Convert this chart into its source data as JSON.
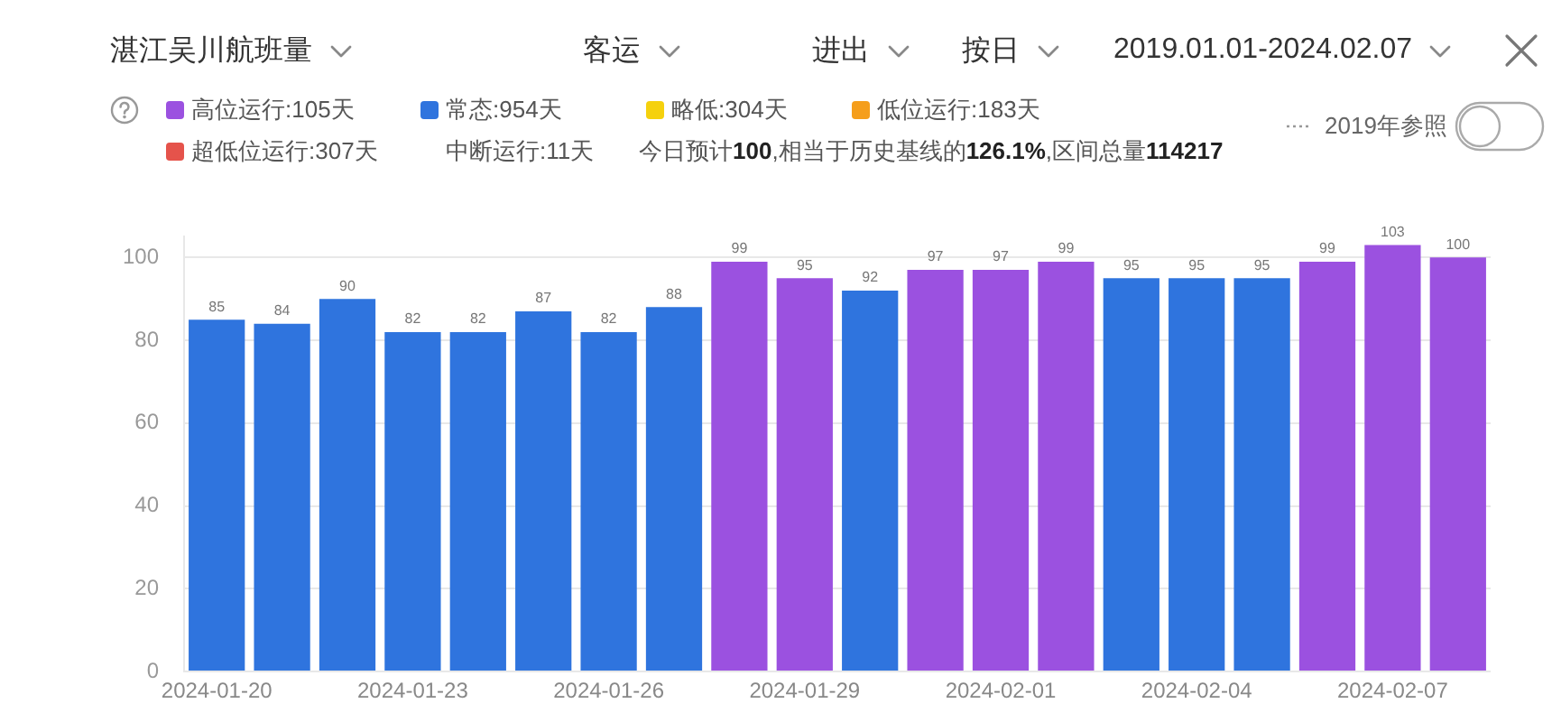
{
  "chart_data": {
    "type": "bar",
    "title": "湛江吴川航班量",
    "categories": [
      "2024-01-20",
      null,
      null,
      "2024-01-23",
      null,
      null,
      "2024-01-26",
      null,
      null,
      "2024-01-29",
      null,
      null,
      "2024-02-01",
      null,
      null,
      "2024-02-04",
      null,
      null,
      "2024-02-07",
      null
    ],
    "series": [
      {
        "name": "高位运行:105天",
        "color": "#9b51e0",
        "values": [
          null,
          null,
          null,
          null,
          null,
          null,
          null,
          null,
          99,
          95,
          null,
          97,
          97,
          99,
          null,
          null,
          null,
          99,
          103,
          100
        ]
      },
      {
        "name": "常态:954天",
        "color": "#2f74de",
        "values": [
          85,
          84,
          90,
          82,
          82,
          87,
          82,
          88,
          null,
          null,
          92,
          null,
          null,
          null,
          95,
          95,
          95,
          null,
          null,
          null
        ]
      },
      {
        "name": "略低:304天",
        "color": "#f5d10d",
        "values": [
          null,
          null,
          null,
          null,
          null,
          null,
          null,
          null,
          null,
          null,
          null,
          null,
          null,
          null,
          null,
          null,
          null,
          null,
          null,
          null
        ]
      },
      {
        "name": "低位运行:183天",
        "color": "#f59e1b",
        "values": [
          null,
          null,
          null,
          null,
          null,
          null,
          null,
          null,
          null,
          null,
          null,
          null,
          null,
          null,
          null,
          null,
          null,
          null,
          null,
          null
        ]
      },
      {
        "name": "超低位运行:307天",
        "color": "#e5534b",
        "values": [
          null,
          null,
          null,
          null,
          null,
          null,
          null,
          null,
          null,
          null,
          null,
          null,
          null,
          null,
          null,
          null,
          null,
          null,
          null,
          null
        ]
      }
    ],
    "ylim": [
      0,
      105
    ],
    "yticks": [
      0,
      20,
      40,
      60,
      80,
      100
    ],
    "grid": "y",
    "legend": "top left",
    "data_labels": true,
    "annotations": [
      "客运",
      "进出",
      "按日",
      "2019.01.01-2024.02.07",
      "中断运行:11天",
      "今日预计100,相当于历史基线的126.1%,区间总量114217",
      "2019年参照"
    ]
  }
}
